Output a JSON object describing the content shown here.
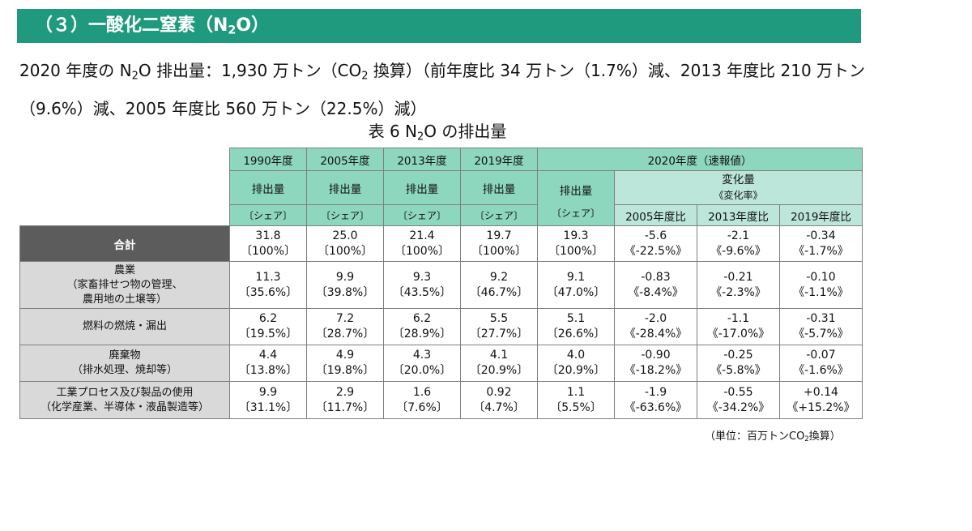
{
  "section_title": "（３）一酸化二窒素（N",
  "section_title_sub": "2",
  "section_title_end": "O）",
  "summary": {
    "part1": "2020 年度の N",
    "sub1": "2",
    "part2": "O 排出量：1,930 万トン（CO",
    "sub2": "2",
    "part3": " 換算）（前年度比 34 万トン（1.7%）減、2013 年度比 210 万トン（9.6%）減、2005 年度比 560 万トン（22.5%）減）"
  },
  "caption": {
    "pre": "表 6 N",
    "sub": "2",
    "post": "O の排出量"
  },
  "table": {
    "year_headers": [
      "1990年度",
      "2005年度",
      "2013年度",
      "2019年度"
    ],
    "header_2020": "2020年度（速報値）",
    "emission_label": "排出量",
    "share_label": "〔シェア〕",
    "change_label": "変化量",
    "change_rate_label": "《変化率》",
    "comparison_headers": [
      "2005年度比",
      "2013年度比",
      "2019年度比"
    ],
    "rows": [
      {
        "label_lines": [
          "合計"
        ],
        "values": [
          [
            "31.8",
            "〔100%〕"
          ],
          [
            "25.0",
            "〔100%〕"
          ],
          [
            "21.4",
            "〔100%〕"
          ],
          [
            "19.7",
            "〔100%〕"
          ],
          [
            "19.3",
            "〔100%〕"
          ],
          [
            "-5.6",
            "《-22.5%》"
          ],
          [
            "-2.1",
            "《-9.6%》"
          ],
          [
            "-0.34",
            "《-1.7%》"
          ]
        ]
      },
      {
        "label_lines": [
          "農業",
          "（家畜排せつ物の管理、",
          "農用地の土壌等）"
        ],
        "values": [
          [
            "11.3",
            "〔35.6%〕"
          ],
          [
            "9.9",
            "〔39.8%〕"
          ],
          [
            "9.3",
            "〔43.5%〕"
          ],
          [
            "9.2",
            "〔46.7%〕"
          ],
          [
            "9.1",
            "〔47.0%〕"
          ],
          [
            "-0.83",
            "《-8.4%》"
          ],
          [
            "-0.21",
            "《-2.3%》"
          ],
          [
            "-0.10",
            "《-1.1%》"
          ]
        ]
      },
      {
        "label_lines": [
          "燃料の燃焼・漏出"
        ],
        "values": [
          [
            "6.2",
            "〔19.5%〕"
          ],
          [
            "7.2",
            "〔28.7%〕"
          ],
          [
            "6.2",
            "〔28.9%〕"
          ],
          [
            "5.5",
            "〔27.7%〕"
          ],
          [
            "5.1",
            "〔26.6%〕"
          ],
          [
            "-2.0",
            "《-28.4%》"
          ],
          [
            "-1.1",
            "《-17.0%》"
          ],
          [
            "-0.31",
            "《-5.7%》"
          ]
        ]
      },
      {
        "label_lines": [
          "廃棄物",
          "（排水処理、焼却等）"
        ],
        "values": [
          [
            "4.4",
            "〔13.8%〕"
          ],
          [
            "4.9",
            "〔19.8%〕"
          ],
          [
            "4.3",
            "〔20.0%〕"
          ],
          [
            "4.1",
            "〔20.9%〕"
          ],
          [
            "4.0",
            "〔20.9%〕"
          ],
          [
            "-0.90",
            "《-18.2%》"
          ],
          [
            "-0.25",
            "《-5.8%》"
          ],
          [
            "-0.07",
            "《-1.6%》"
          ]
        ]
      },
      {
        "label_lines": [
          "工業プロセス及び製品の使用",
          "（化学産業、半導体・液晶製造等）"
        ],
        "values": [
          [
            "9.9",
            "〔31.1%〕"
          ],
          [
            "2.9",
            "〔11.7%〕"
          ],
          [
            "1.6",
            "〔7.6%〕"
          ],
          [
            "0.92",
            "〔4.7%〕"
          ],
          [
            "1.1",
            "〔5.5%〕"
          ],
          [
            "-1.9",
            "《-63.6%》"
          ],
          [
            "-0.55",
            "《-34.2%》"
          ],
          [
            "+0.14",
            "《+15.2%》"
          ]
        ]
      }
    ]
  },
  "unit_note": {
    "pre": "（単位：百万トンCO",
    "sub": "2",
    "post": "換算）"
  },
  "colors": {
    "banner": "#1f9a7e",
    "header": "#8dd7bf",
    "header_light": "#bce6d9",
    "total_label": "#5c5c5c",
    "row_label": "#d9d9d9"
  }
}
